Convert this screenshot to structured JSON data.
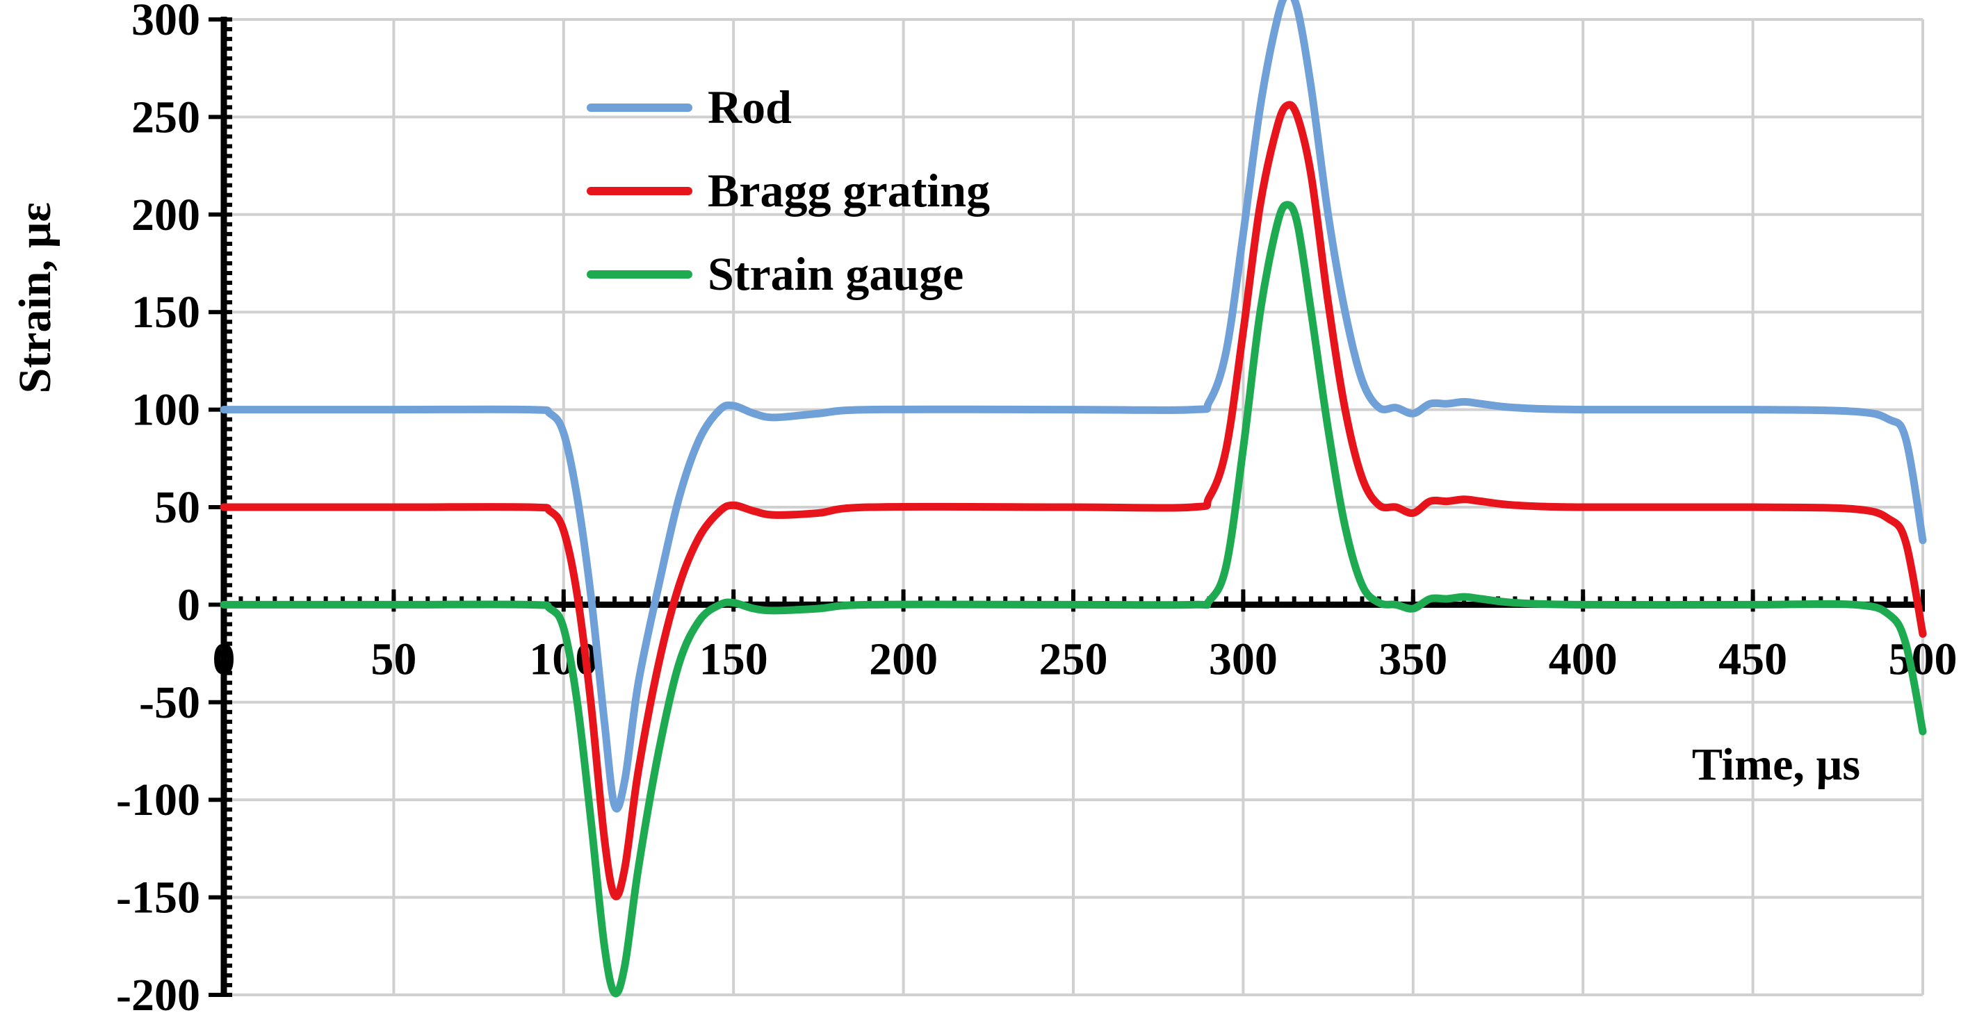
{
  "chart_data": {
    "type": "line",
    "xlabel": "Time, µs",
    "ylabel": "Strain, µε",
    "xlim": [
      0,
      500
    ],
    "ylim": [
      -200,
      300
    ],
    "xticks": [
      0,
      50,
      100,
      150,
      200,
      250,
      300,
      350,
      400,
      450,
      500
    ],
    "yticks": [
      -200,
      -150,
      -100,
      -50,
      0,
      50,
      100,
      150,
      200,
      250,
      300
    ],
    "grid": true,
    "legend_position": "top-left",
    "series": [
      {
        "name": "Rod",
        "color": "#6fa0d8",
        "points": [
          [
            0,
            100
          ],
          [
            50,
            100
          ],
          [
            90,
            100
          ],
          [
            96,
            98
          ],
          [
            100,
            88
          ],
          [
            104,
            55
          ],
          [
            108,
            5
          ],
          [
            112,
            -60
          ],
          [
            115,
            -103
          ],
          [
            118,
            -90
          ],
          [
            122,
            -40
          ],
          [
            128,
            10
          ],
          [
            134,
            55
          ],
          [
            140,
            85
          ],
          [
            146,
            100
          ],
          [
            150,
            102
          ],
          [
            156,
            98
          ],
          [
            162,
            96
          ],
          [
            175,
            98
          ],
          [
            190,
            100
          ],
          [
            250,
            100
          ],
          [
            285,
            100
          ],
          [
            290,
            104
          ],
          [
            295,
            130
          ],
          [
            300,
            190
          ],
          [
            305,
            255
          ],
          [
            310,
            300
          ],
          [
            313,
            313
          ],
          [
            316,
            305
          ],
          [
            320,
            265
          ],
          [
            325,
            200
          ],
          [
            330,
            150
          ],
          [
            335,
            115
          ],
          [
            340,
            101
          ],
          [
            345,
            101
          ],
          [
            350,
            98
          ],
          [
            355,
            103
          ],
          [
            360,
            103
          ],
          [
            365,
            104
          ],
          [
            370,
            103
          ],
          [
            380,
            101
          ],
          [
            400,
            100
          ],
          [
            450,
            100
          ],
          [
            480,
            99
          ],
          [
            490,
            95
          ],
          [
            495,
            85
          ],
          [
            500,
            33
          ]
        ]
      },
      {
        "name": "Bragg grating",
        "color": "#e8141c",
        "points": [
          [
            0,
            50
          ],
          [
            50,
            50
          ],
          [
            90,
            50
          ],
          [
            96,
            48
          ],
          [
            100,
            38
          ],
          [
            104,
            5
          ],
          [
            108,
            -50
          ],
          [
            112,
            -120
          ],
          [
            115,
            -149
          ],
          [
            118,
            -135
          ],
          [
            122,
            -85
          ],
          [
            128,
            -30
          ],
          [
            134,
            10
          ],
          [
            140,
            35
          ],
          [
            146,
            48
          ],
          [
            150,
            51
          ],
          [
            156,
            48
          ],
          [
            162,
            46
          ],
          [
            175,
            47
          ],
          [
            190,
            50
          ],
          [
            250,
            50
          ],
          [
            285,
            50
          ],
          [
            290,
            55
          ],
          [
            295,
            80
          ],
          [
            300,
            140
          ],
          [
            305,
            205
          ],
          [
            310,
            245
          ],
          [
            313,
            256
          ],
          [
            316,
            250
          ],
          [
            320,
            220
          ],
          [
            325,
            155
          ],
          [
            330,
            100
          ],
          [
            335,
            65
          ],
          [
            340,
            51
          ],
          [
            345,
            50
          ],
          [
            350,
            47
          ],
          [
            355,
            53
          ],
          [
            360,
            53
          ],
          [
            365,
            54
          ],
          [
            370,
            53
          ],
          [
            380,
            51
          ],
          [
            400,
            50
          ],
          [
            450,
            50
          ],
          [
            480,
            49
          ],
          [
            490,
            44
          ],
          [
            495,
            32
          ],
          [
            500,
            -15
          ]
        ]
      },
      {
        "name": "Strain gauge",
        "color": "#1eaa50",
        "points": [
          [
            0,
            0
          ],
          [
            50,
            0
          ],
          [
            90,
            0
          ],
          [
            96,
            -2
          ],
          [
            100,
            -12
          ],
          [
            104,
            -50
          ],
          [
            108,
            -110
          ],
          [
            112,
            -175
          ],
          [
            115,
            -199
          ],
          [
            118,
            -185
          ],
          [
            122,
            -135
          ],
          [
            128,
            -75
          ],
          [
            134,
            -30
          ],
          [
            140,
            -8
          ],
          [
            146,
            0
          ],
          [
            150,
            1
          ],
          [
            156,
            -2
          ],
          [
            162,
            -3
          ],
          [
            175,
            -2
          ],
          [
            190,
            0
          ],
          [
            250,
            0
          ],
          [
            285,
            0
          ],
          [
            290,
            2
          ],
          [
            295,
            20
          ],
          [
            300,
            80
          ],
          [
            305,
            150
          ],
          [
            310,
            195
          ],
          [
            313,
            205
          ],
          [
            316,
            195
          ],
          [
            320,
            150
          ],
          [
            325,
            90
          ],
          [
            330,
            40
          ],
          [
            335,
            10
          ],
          [
            340,
            1
          ],
          [
            345,
            0
          ],
          [
            350,
            -2
          ],
          [
            355,
            3
          ],
          [
            360,
            3
          ],
          [
            365,
            4
          ],
          [
            370,
            3
          ],
          [
            380,
            1
          ],
          [
            400,
            0
          ],
          [
            450,
            0
          ],
          [
            480,
            0
          ],
          [
            490,
            -5
          ],
          [
            495,
            -20
          ],
          [
            500,
            -65
          ]
        ]
      }
    ]
  }
}
